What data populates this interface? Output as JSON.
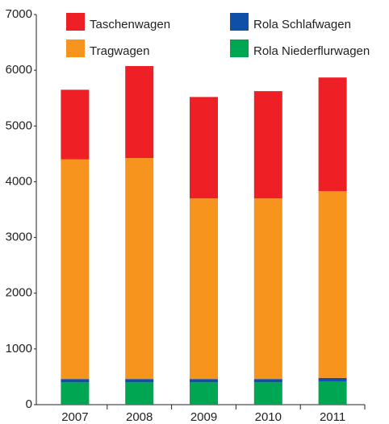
{
  "chart_data": {
    "type": "stacked_bar",
    "categories": [
      "2007",
      "2008",
      "2009",
      "2010",
      "2011"
    ],
    "series": [
      {
        "name": "Rola Niederflurwagen",
        "color": "#00a651",
        "values": [
          400,
          400,
          400,
          400,
          420
        ]
      },
      {
        "name": "Rola Schlafwagen",
        "color": "#0f4fa8",
        "values": [
          60,
          60,
          60,
          60,
          60
        ]
      },
      {
        "name": "Tragwagen",
        "color": "#f7941d",
        "values": [
          3940,
          3965,
          3240,
          3240,
          3350
        ]
      },
      {
        "name": "Taschenwagen",
        "color": "#ee2026",
        "values": [
          1250,
          1650,
          1820,
          1925,
          2040
        ]
      }
    ],
    "ylim": [
      0,
      7000
    ],
    "yticks": [
      0,
      1000,
      2000,
      3000,
      4000,
      5000,
      6000,
      7000
    ],
    "grid": false
  }
}
